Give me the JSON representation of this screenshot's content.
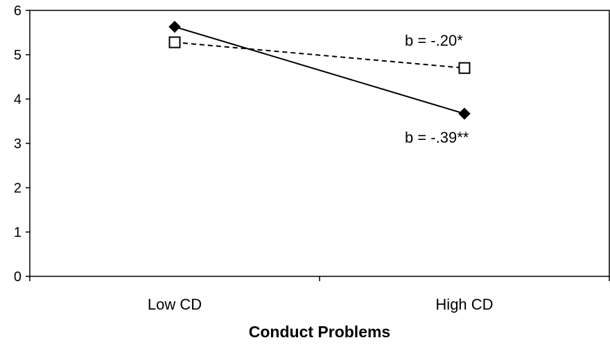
{
  "chart_data": {
    "type": "line",
    "title": "",
    "xlabel": "Conduct Problems",
    "ylabel": "",
    "categories": [
      "Low CD",
      "High CD"
    ],
    "ylim": [
      0,
      6
    ],
    "yticks": [
      "0",
      "1",
      "2",
      "3",
      "4",
      "5",
      "6"
    ],
    "grid": false,
    "legend": "none",
    "series": [
      {
        "values": [
          5.63,
          3.67
        ],
        "line_style": "solid",
        "marker": "filled-diamond",
        "color": "#000000",
        "annotation": "b = -.39**"
      },
      {
        "values": [
          5.28,
          4.7
        ],
        "line_style": "dashed",
        "marker": "open-square",
        "color": "#000000",
        "annotation": "b = -.20*"
      }
    ]
  }
}
